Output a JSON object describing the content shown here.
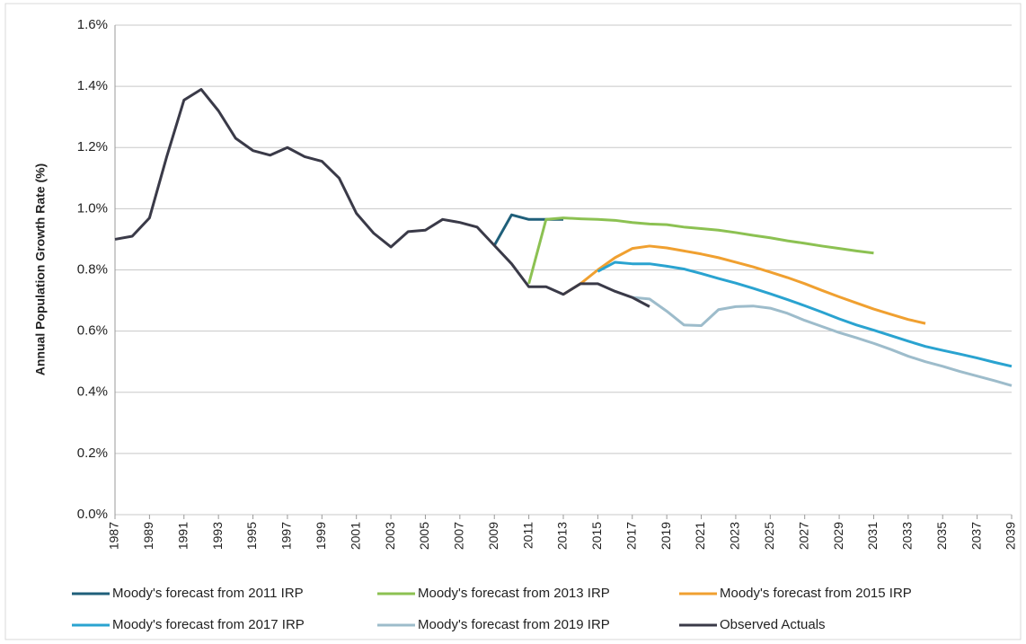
{
  "chart_data": {
    "type": "line",
    "y_label": "Annual Population Growth Rate (%)",
    "xlim": [
      1987,
      2039
    ],
    "xticks": [
      1987,
      1989,
      1991,
      1993,
      1995,
      1997,
      1999,
      2001,
      2003,
      2005,
      2007,
      2009,
      2011,
      2013,
      2015,
      2017,
      2019,
      2021,
      2023,
      2025,
      2027,
      2029,
      2031,
      2033,
      2035,
      2037,
      2039
    ],
    "ylim": [
      0,
      1.6
    ],
    "yticks": [
      {
        "value": 0,
        "label": "0.0%"
      },
      {
        "value": 0.2,
        "label": "0.2%"
      },
      {
        "value": 0.4,
        "label": "0.4%"
      },
      {
        "value": 0.6,
        "label": "0.6%"
      },
      {
        "value": 0.8,
        "label": "0.8%"
      },
      {
        "value": 1.0,
        "label": "1.0%"
      },
      {
        "value": 1.2,
        "label": "1.2%"
      },
      {
        "value": 1.4,
        "label": "1.4%"
      },
      {
        "value": 1.6,
        "label": "1.6%"
      }
    ],
    "grid": true,
    "legend": "bottom",
    "series": [
      {
        "name": "Moody's forecast from 2011 IRP",
        "color": "#1f5f7a",
        "x": [
          2009,
          2010,
          2011,
          2012,
          2013
        ],
        "values": [
          0.88,
          0.98,
          0.965,
          0.965,
          0.965
        ]
      },
      {
        "name": "Moody's forecast from 2013 IRP",
        "color": "#8cc152",
        "x": [
          2011,
          2012,
          2013,
          2014,
          2015,
          2016,
          2017,
          2018,
          2019,
          2020,
          2021,
          2022,
          2023,
          2024,
          2025,
          2026,
          2027,
          2028,
          2029,
          2030,
          2031
        ],
        "values": [
          0.755,
          0.965,
          0.97,
          0.967,
          0.965,
          0.962,
          0.955,
          0.95,
          0.948,
          0.94,
          0.935,
          0.93,
          0.922,
          0.913,
          0.905,
          0.895,
          0.887,
          0.878,
          0.87,
          0.862,
          0.855
        ]
      },
      {
        "name": "Moody's forecast from 2015 IRP",
        "color": "#f0a030",
        "x": [
          2013,
          2014,
          2015,
          2016,
          2017,
          2018,
          2019,
          2020,
          2021,
          2022,
          2023,
          2024,
          2025,
          2026,
          2027,
          2028,
          2029,
          2030,
          2031,
          2032,
          2033,
          2034
        ],
        "values": [
          0.72,
          0.755,
          0.8,
          0.84,
          0.87,
          0.878,
          0.872,
          0.862,
          0.852,
          0.84,
          0.825,
          0.81,
          0.793,
          0.775,
          0.755,
          0.733,
          0.712,
          0.692,
          0.672,
          0.655,
          0.638,
          0.625
        ]
      },
      {
        "name": "Moody's forecast from 2017 IRP",
        "color": "#2aa3d0",
        "x": [
          2015,
          2016,
          2017,
          2018,
          2019,
          2020,
          2021,
          2022,
          2023,
          2024,
          2025,
          2026,
          2027,
          2028,
          2029,
          2030,
          2031,
          2032,
          2033,
          2034,
          2035,
          2036,
          2037,
          2038,
          2039
        ],
        "values": [
          0.795,
          0.825,
          0.82,
          0.82,
          0.812,
          0.803,
          0.788,
          0.772,
          0.757,
          0.74,
          0.722,
          0.703,
          0.683,
          0.662,
          0.64,
          0.62,
          0.603,
          0.585,
          0.567,
          0.55,
          0.537,
          0.525,
          0.512,
          0.498,
          0.485
        ]
      },
      {
        "name": "Moody's forecast from 2019 IRP",
        "color": "#9dbccb",
        "x": [
          2017,
          2018,
          2019,
          2020,
          2021,
          2022,
          2023,
          2024,
          2025,
          2026,
          2027,
          2028,
          2029,
          2030,
          2031,
          2032,
          2033,
          2034,
          2035,
          2036,
          2037,
          2038,
          2039
        ],
        "values": [
          0.71,
          0.705,
          0.665,
          0.62,
          0.618,
          0.67,
          0.68,
          0.682,
          0.675,
          0.658,
          0.635,
          0.615,
          0.595,
          0.578,
          0.56,
          0.54,
          0.518,
          0.5,
          0.485,
          0.468,
          0.453,
          0.438,
          0.422
        ]
      },
      {
        "name": "Observed Actuals",
        "color": "#3a3a48",
        "x": [
          1987,
          1988,
          1989,
          1990,
          1991,
          1992,
          1993,
          1994,
          1995,
          1996,
          1997,
          1998,
          1999,
          2000,
          2001,
          2002,
          2003,
          2004,
          2005,
          2006,
          2007,
          2008,
          2009,
          2010,
          2011,
          2012,
          2013,
          2014,
          2015,
          2016,
          2017,
          2018
        ],
        "values": [
          0.9,
          0.91,
          0.97,
          1.17,
          1.355,
          1.39,
          1.32,
          1.23,
          1.19,
          1.175,
          1.2,
          1.17,
          1.155,
          1.1,
          0.985,
          0.92,
          0.875,
          0.925,
          0.93,
          0.965,
          0.955,
          0.94,
          0.88,
          0.82,
          0.745,
          0.745,
          0.72,
          0.755,
          0.755,
          0.73,
          0.71,
          0.68
        ]
      }
    ]
  }
}
